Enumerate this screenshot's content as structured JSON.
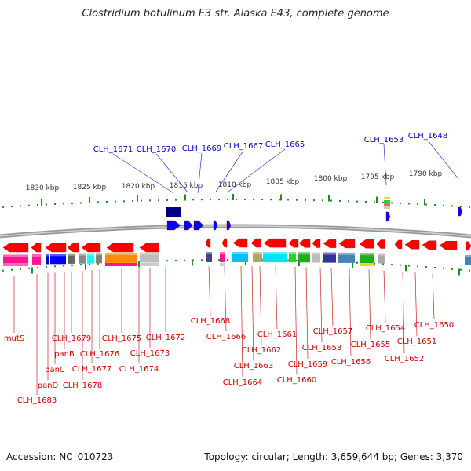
{
  "title": "Clostridium botulinum E3 str. Alaska E43, complete genome",
  "footer": {
    "accession": "Accession: NC_010723",
    "topology": "Topology: circular; Length: 3,659,644 bp; Genes: 3,370"
  },
  "colors": {
    "top_label": "#0000cc",
    "bottom_label": "#cc0000",
    "gene_red": "#ff0000",
    "gene_blue": "#0000ff",
    "backbone": "#888888",
    "tick_green": "#228b22"
  },
  "scale_labels": [
    "1830 kbp",
    "1825 kbp",
    "1820 kbp",
    "1815 kbp",
    "1810 kbp",
    "1805 kbp",
    "1800 kbp",
    "1795 kbp",
    "1790 kbp"
  ],
  "top_gene_labels": [
    "CLH_1671",
    "CLH_1670",
    "CLH_1669",
    "CLH_1667",
    "CLH_1665",
    "CLH_1653",
    "CLH_1648"
  ],
  "bottom_gene_labels": [
    "mutS",
    "CLH_1683",
    "panD",
    "panC",
    "panB",
    "CLH_1679",
    "CLH_1678",
    "CLH_1677",
    "CLH_1676",
    "CLH_1675",
    "CLH_1674",
    "CLH_1673",
    "CLH_1672",
    "CLH_1668",
    "CLH_1666",
    "CLH_1664",
    "CLH_1663",
    "CLH_1662",
    "CLH_1661",
    "CLH_1660",
    "CLH_1659",
    "CLH_1658",
    "CLH_1657",
    "CLH_1656",
    "CLH_1655",
    "CLH_1654",
    "CLH_1652",
    "CLH_1651",
    "CLH_1650"
  ]
}
